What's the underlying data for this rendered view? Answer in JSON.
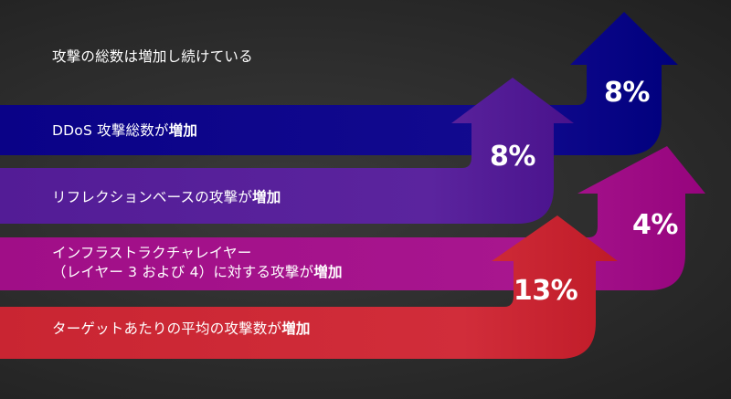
{
  "headline": "攻撃の総数は増加し続けている",
  "colors": {
    "ddos": "#120a8f",
    "reflection": "#5b249e",
    "infra": "#a8168f",
    "avg": "#d12d3a"
  },
  "chart_data": {
    "type": "bar",
    "title": "攻撃の総数は増加し続けている",
    "items": [
      {
        "label_plain": "DDoS 攻撃総数が",
        "label_bold": "増加",
        "value": 8,
        "value_text": "8%"
      },
      {
        "label_plain": "リフレクションベースの攻撃が",
        "label_bold": "増加",
        "value": 8,
        "value_text": "8%"
      },
      {
        "label_plain": "インフラストラクチャレイヤー\n（レイヤー 3 および 4）に対する攻撃が",
        "label_bold": "増加",
        "value": 4,
        "value_text": "4%"
      },
      {
        "label_plain": "ターゲットあたりの平均の攻撃数が",
        "label_bold": "増加",
        "value": 13,
        "value_text": "13%"
      }
    ]
  }
}
